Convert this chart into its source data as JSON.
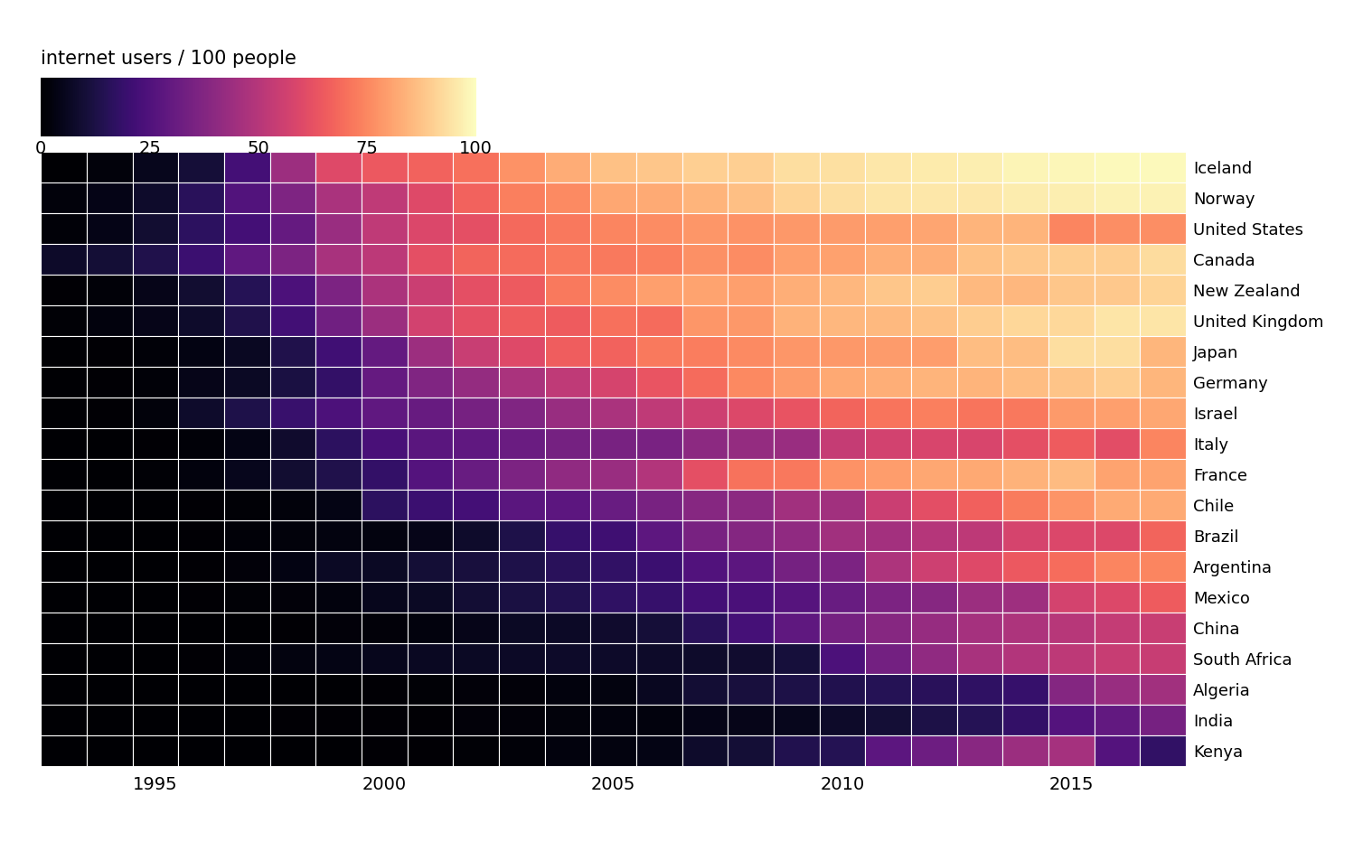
{
  "countries": [
    "Iceland",
    "Norway",
    "United States",
    "Canada",
    "New Zealand",
    "United Kingdom",
    "Japan",
    "Germany",
    "Israel",
    "Italy",
    "France",
    "Chile",
    "Brazil",
    "Argentina",
    "Mexico",
    "China",
    "South Africa",
    "Algeria",
    "India",
    "Kenya"
  ],
  "years": [
    1993,
    1994,
    1995,
    1996,
    1997,
    1998,
    1999,
    2000,
    2001,
    2002,
    2003,
    2004,
    2005,
    2006,
    2007,
    2008,
    2009,
    2010,
    2011,
    2012,
    2013,
    2014,
    2015,
    2016,
    2017
  ],
  "internet_data": {
    "Iceland": [
      0.0,
      2.0,
      5.2,
      10.2,
      22.2,
      43.9,
      60.0,
      64.7,
      67.0,
      70.0,
      77.3,
      82.8,
      87.0,
      88.0,
      90.0,
      90.0,
      93.0,
      93.4,
      95.0,
      95.9,
      96.5,
      98.0,
      98.2,
      99.0,
      99.0
    ],
    "Norway": [
      2.0,
      4.2,
      7.9,
      15.7,
      25.4,
      36.4,
      47.1,
      52.0,
      60.0,
      66.9,
      73.3,
      75.4,
      81.5,
      82.3,
      84.2,
      86.7,
      90.9,
      93.3,
      94.7,
      95.0,
      95.1,
      96.3,
      96.8,
      97.3,
      97.3
    ],
    "United States": [
      1.5,
      4.0,
      9.2,
      16.7,
      22.1,
      30.1,
      43.1,
      52.3,
      59.3,
      62.0,
      68.6,
      71.5,
      74.4,
      75.9,
      78.1,
      77.0,
      78.2,
      79.0,
      80.0,
      81.0,
      84.2,
      84.2,
      74.6,
      76.2,
      76.2
    ],
    "Canada": [
      7.5,
      10.1,
      13.3,
      20.1,
      29.0,
      36.3,
      46.7,
      51.3,
      61.8,
      67.2,
      68.8,
      71.7,
      72.0,
      73.3,
      76.7,
      76.0,
      80.0,
      80.3,
      83.0,
      83.0,
      87.1,
      88.5,
      89.8,
      89.8,
      92.7
    ],
    "New Zealand": [
      0.5,
      1.5,
      4.5,
      9.0,
      15.0,
      24.0,
      36.0,
      47.4,
      55.0,
      62.0,
      65.0,
      72.0,
      76.0,
      80.0,
      80.5,
      80.0,
      83.0,
      85.0,
      88.0,
      89.5,
      85.5,
      85.0,
      88.2,
      88.5,
      90.8
    ],
    "United Kingdom": [
      1.0,
      2.5,
      4.3,
      8.0,
      13.6,
      21.5,
      32.9,
      43.5,
      57.0,
      62.0,
      65.6,
      65.6,
      70.0,
      68.8,
      77.8,
      78.4,
      83.6,
      85.0,
      85.4,
      87.0,
      89.8,
      91.6,
      92.0,
      94.8,
      94.8
    ],
    "Japan": [
      0.2,
      0.5,
      1.2,
      3.3,
      6.4,
      13.4,
      21.4,
      29.9,
      44.0,
      54.5,
      60.0,
      66.0,
      67.0,
      72.0,
      73.0,
      75.4,
      78.0,
      78.2,
      79.0,
      79.5,
      86.3,
      86.3,
      93.3,
      93.3,
      84.6
    ],
    "Germany": [
      0.2,
      0.5,
      1.5,
      4.5,
      7.0,
      12.0,
      18.0,
      30.2,
      37.0,
      42.0,
      47.0,
      52.0,
      57.8,
      63.5,
      69.0,
      75.0,
      79.1,
      82.0,
      83.0,
      84.0,
      84.0,
      86.2,
      87.6,
      89.6,
      84.4
    ],
    "Israel": [
      0.3,
      0.5,
      2.0,
      8.0,
      13.1,
      19.3,
      24.0,
      29.0,
      30.8,
      34.7,
      37.0,
      42.9,
      47.0,
      52.0,
      55.5,
      59.4,
      63.1,
      67.5,
      70.8,
      73.4,
      70.8,
      71.6,
      78.9,
      79.9,
      81.6
    ],
    "Italy": [
      0.1,
      0.3,
      0.5,
      1.5,
      3.6,
      8.5,
      16.7,
      23.1,
      27.7,
      29.0,
      31.5,
      34.0,
      35.0,
      35.5,
      40.0,
      42.0,
      43.0,
      53.6,
      56.8,
      58.5,
      58.5,
      62.0,
      65.6,
      61.3,
      74.4
    ],
    "France": [
      0.1,
      0.3,
      0.8,
      2.5,
      5.3,
      9.0,
      13.6,
      18.0,
      26.0,
      31.0,
      36.0,
      41.0,
      43.0,
      49.0,
      62.0,
      70.7,
      71.6,
      77.3,
      79.6,
      81.4,
      81.9,
      83.8,
      85.6,
      80.5,
      80.5
    ],
    "Chile": [
      0.1,
      0.2,
      0.3,
      0.7,
      1.1,
      2.0,
      3.8,
      16.6,
      20.0,
      22.0,
      27.5,
      28.0,
      31.2,
      35.0,
      38.4,
      39.6,
      45.0,
      45.0,
      55.0,
      61.4,
      66.5,
      72.4,
      77.7,
      82.3,
      82.3
    ],
    "Brazil": [
      0.1,
      0.1,
      0.2,
      0.5,
      1.2,
      2.3,
      2.9,
      2.9,
      4.5,
      8.0,
      13.0,
      19.1,
      21.0,
      28.2,
      35.0,
      38.0,
      40.7,
      45.0,
      45.7,
      49.8,
      51.6,
      57.6,
      59.1,
      59.7,
      67.5
    ],
    "Argentina": [
      0.1,
      0.1,
      0.3,
      0.7,
      1.7,
      3.5,
      6.8,
      7.0,
      10.0,
      11.2,
      13.0,
      16.0,
      17.7,
      20.0,
      25.0,
      28.1,
      34.0,
      36.0,
      47.7,
      55.8,
      59.9,
      64.7,
      69.4,
      74.3,
      74.3
    ],
    "Mexico": [
      0.1,
      0.1,
      0.2,
      0.5,
      0.9,
      1.9,
      2.5,
      5.1,
      7.0,
      9.5,
      12.0,
      14.1,
      17.2,
      18.9,
      22.0,
      23.6,
      26.3,
      31.1,
      36.2,
      38.4,
      43.5,
      44.4,
      57.4,
      59.5,
      65.3
    ],
    "China": [
      0.0,
      0.0,
      0.0,
      0.1,
      0.2,
      0.7,
      1.8,
      1.8,
      2.6,
      4.6,
      6.7,
      7.3,
      8.5,
      10.5,
      16.0,
      22.6,
      28.9,
      34.3,
      38.3,
      42.3,
      45.8,
      47.9,
      50.3,
      53.2,
      54.3
    ],
    "South Africa": [
      0.1,
      0.1,
      0.3,
      0.7,
      1.4,
      3.0,
      3.8,
      5.3,
      6.5,
      6.8,
      7.2,
      7.6,
      7.6,
      7.6,
      8.0,
      8.6,
      10.8,
      24.0,
      33.9,
      41.0,
      46.5,
      49.0,
      51.9,
      54.0,
      54.0
    ],
    "Algeria": [
      0.0,
      0.0,
      0.0,
      0.0,
      0.1,
      0.3,
      0.3,
      0.5,
      1.0,
      1.6,
      1.8,
      2.4,
      3.0,
      6.0,
      9.6,
      11.2,
      12.5,
      14.0,
      15.2,
      16.0,
      17.2,
      19.0,
      38.2,
      42.9,
      45.0
    ],
    "India": [
      0.0,
      0.0,
      0.1,
      0.1,
      0.2,
      0.4,
      0.5,
      0.5,
      0.7,
      1.6,
      1.7,
      2.0,
      2.4,
      2.7,
      4.0,
      4.4,
      5.1,
      7.5,
      10.1,
      12.6,
      15.1,
      18.0,
      26.0,
      29.5,
      34.4
    ],
    "Kenya": [
      0.0,
      0.0,
      0.0,
      0.0,
      0.0,
      0.1,
      0.2,
      0.4,
      0.6,
      1.0,
      1.5,
      2.7,
      3.1,
      3.6,
      8.0,
      10.0,
      14.0,
      14.7,
      28.0,
      32.1,
      39.0,
      43.4,
      45.9,
      26.0,
      17.8
    ]
  },
  "vmin": 0,
  "vmax": 100,
  "colormap": "magma",
  "title": "internet users / 100 people",
  "colorbar_ticks": [
    0,
    25,
    50,
    75,
    100
  ],
  "year_ticks": [
    1995,
    2000,
    2005,
    2010,
    2015
  ],
  "background_color": "#ffffff",
  "cell_linewidth": 0.8,
  "cell_linecolor": "white",
  "title_fontsize": 15,
  "tick_fontsize": 14,
  "country_fontsize": 13
}
